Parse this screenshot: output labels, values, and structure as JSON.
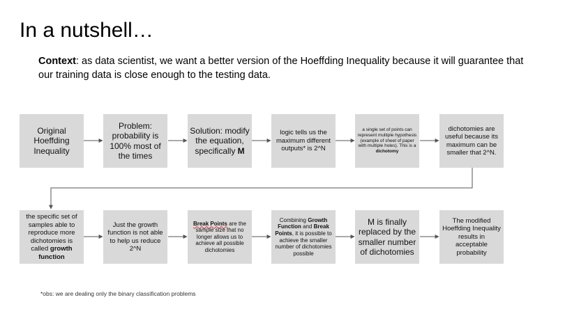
{
  "title": "In a nutshell…",
  "context": {
    "label": "Context",
    "text": ": as data scientist, we want a better version of the Hoeffding Inequality because it will guarantee that our training data is close enough to the testing data."
  },
  "row1": [
    {
      "text": "Original Hoeffding Inequality"
    },
    {
      "text": "Problem: probability is 100% most of the times"
    },
    {
      "pre": "Solution: modify the equation, specifically ",
      "bold": "M"
    },
    {
      "text": "logic tells us the maximum different outputs* is 2^N"
    },
    {
      "pre": "a single set of points can represent multiple hypothesis (example of sheet of paper with multiple holes). This is a ",
      "bold": "dichotomy"
    },
    {
      "text": "dichotomies are useful because its maximum can be smaller that 2^N."
    }
  ],
  "row2": [
    {
      "pre": "the specific set of samples able to reproduce more dichotomies is called ",
      "bold": "growth function"
    },
    {
      "text": "Just the growth function is not able to help us reduce 2^N"
    },
    {
      "bold": "Break Points",
      "post": " are the sample size that no longer allows us to achieve all possible dichotomies"
    },
    {
      "pre": "Combining ",
      "bold1": "Growth Function",
      "mid": " and ",
      "bold2": "Break Points",
      "post": ", it is possible to achieve the smaller number of dichotomies possible"
    },
    {
      "text": "M is finally replaced by the smaller number of dichotomies"
    },
    {
      "text": "The modified Hoeffding Inequality results in acceptable probability"
    }
  ],
  "footnote": "*obs: we are dealing only the binary classification problems"
}
